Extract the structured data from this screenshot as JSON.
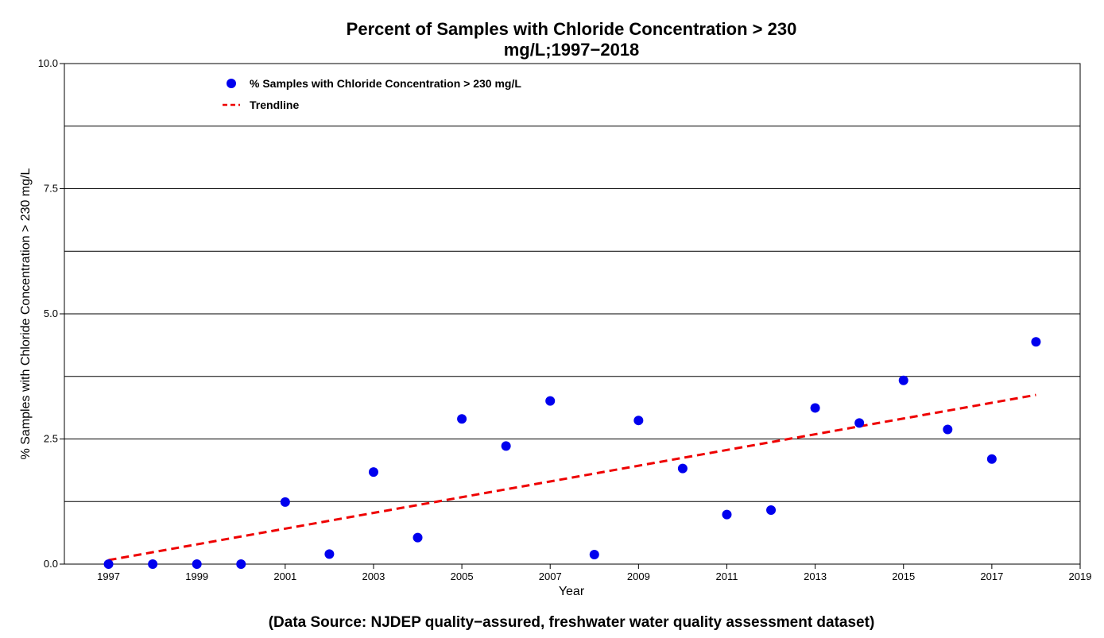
{
  "chart_data": {
    "type": "scatter",
    "title_lines": [
      "Percent of Samples with Chloride Concentration > 230",
      "mg/L;1997−2018"
    ],
    "xlabel": "Year",
    "ylabel": "% Samples with Chloride Concentration > 230 mg/L",
    "source_note": "(Data Source: NJDEP quality−assured, freshwater water quality assessment dataset)",
    "xlim": [
      1996,
      2019
    ],
    "ylim": [
      0,
      10
    ],
    "x_ticks": [
      1997,
      1999,
      2001,
      2003,
      2005,
      2007,
      2009,
      2011,
      2013,
      2015,
      2017,
      2019
    ],
    "x_tick_labels": [
      "1997",
      "1999",
      "2001",
      "2003",
      "2005",
      "2007",
      "2009",
      "2011",
      "2013",
      "2015",
      "2017",
      "2019"
    ],
    "y_ticks": [
      0,
      2.5,
      5,
      7.5,
      10
    ],
    "y_tick_labels": [
      "0.0",
      "2.5",
      "5.0",
      "7.5",
      "10.0"
    ],
    "gridlines_y": [
      1.25,
      2.5,
      3.75,
      5,
      6.25,
      7.5,
      8.75
    ],
    "grid": true,
    "legend_position": "top-left",
    "series": [
      {
        "name": "% Samples with Chloride Concentration > 230 mg/L",
        "kind": "points",
        "color": "#0000ee",
        "x": [
          1997,
          1998,
          1999,
          2000,
          2001,
          2002,
          2003,
          2004,
          2005,
          2006,
          2007,
          2008,
          2009,
          2010,
          2011,
          2012,
          2013,
          2014,
          2015,
          2016,
          2017,
          2018
        ],
        "y": [
          0.0,
          0.0,
          0.0,
          0.0,
          1.24,
          0.2,
          1.84,
          0.53,
          2.9,
          2.36,
          3.26,
          0.19,
          2.87,
          1.91,
          0.99,
          1.08,
          3.12,
          2.82,
          3.67,
          2.69,
          2.1,
          4.44
        ]
      },
      {
        "name": "Trendline",
        "kind": "dashed-line",
        "color": "#ee0000",
        "x": [
          1997,
          2018
        ],
        "y": [
          0.08,
          3.38
        ]
      }
    ]
  }
}
